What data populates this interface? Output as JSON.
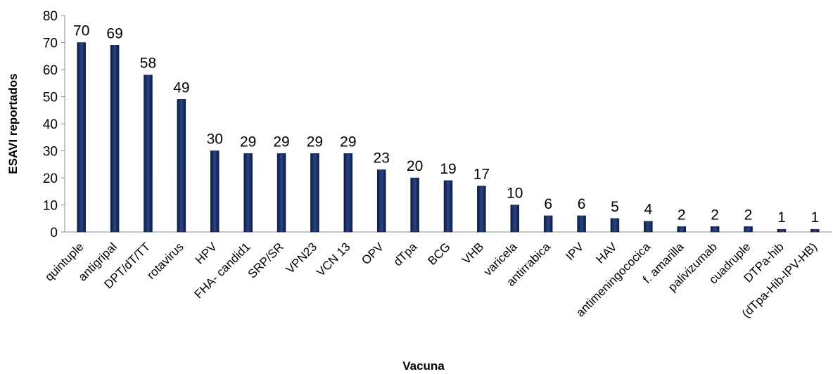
{
  "chart_data": {
    "type": "bar",
    "title": "",
    "xlabel": "Vacuna",
    "ylabel": "ESAVI reportados",
    "ylim": [
      0,
      80
    ],
    "yticks": [
      0,
      10,
      20,
      30,
      40,
      50,
      60,
      70,
      80
    ],
    "grid": false,
    "legend": "none",
    "bar_color": "#1a2c5e",
    "categories": [
      "quintuple",
      "antigripal",
      "DPT/dT/TT",
      "rotavirus",
      "HPV",
      "FHA- candid1",
      "SRP/SR",
      "VPN23",
      "VCN 13",
      "OPV",
      "dTpa",
      "BCG",
      "VHB",
      "varicela",
      "antirrabica",
      "IPV",
      "HAV",
      "antimeningococica",
      "f. amarilla",
      "palivizumab",
      "cuadruple",
      "DTPa-hib",
      "(dTpa-Hib-IPV-HB)"
    ],
    "values": [
      70,
      69,
      58,
      49,
      30,
      29,
      29,
      29,
      29,
      23,
      20,
      19,
      17,
      10,
      6,
      6,
      5,
      4,
      2,
      2,
      2,
      1,
      1
    ]
  }
}
